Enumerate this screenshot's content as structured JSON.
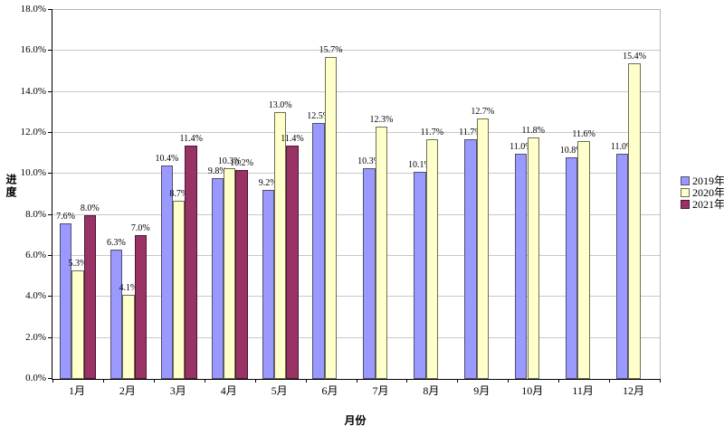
{
  "chart_data": {
    "type": "bar",
    "title": "",
    "xlabel": "月份",
    "ylabel": "进度",
    "categories": [
      "1月",
      "2月",
      "3月",
      "4月",
      "5月",
      "6月",
      "7月",
      "8月",
      "9月",
      "10月",
      "11月",
      "12月"
    ],
    "series": [
      {
        "name": "2019年",
        "color": "#9999FF",
        "border_color": "#50506e",
        "values": [
          7.6,
          6.3,
          10.4,
          9.8,
          9.2,
          12.5,
          10.3,
          10.1,
          11.7,
          11.0,
          10.8,
          11.0
        ],
        "labels": [
          "7.6%",
          "6.3%",
          "10.4%",
          "9.8%",
          "9.2%",
          "12.5%",
          "10.3%",
          "10.1%",
          "11.7%",
          "11.0%",
          "10.8%",
          "11.0%"
        ]
      },
      {
        "name": "2020年",
        "color": "#FFFFCC",
        "border_color": "#6e6e50",
        "values": [
          5.3,
          4.1,
          8.7,
          10.3,
          13.0,
          15.7,
          12.3,
          11.7,
          12.7,
          11.8,
          11.6,
          15.4
        ],
        "labels": [
          "5.3%",
          "4.1%",
          "8.7%",
          "10.3%",
          "13.0%",
          "15.7%",
          "12.3%",
          "11.7%",
          "12.7%",
          "11.8%",
          "11.6%",
          "15.4%"
        ]
      },
      {
        "name": "2021年",
        "color": "#993366",
        "border_color": "#4a1630",
        "values": [
          8.0,
          7.0,
          11.4,
          10.2,
          11.4,
          null,
          null,
          null,
          null,
          null,
          null,
          null
        ],
        "labels": [
          "8.0%",
          "7.0%",
          "11.4%",
          "10.2%",
          "11.4%",
          null,
          null,
          null,
          null,
          null,
          null,
          null
        ]
      }
    ],
    "ylim": [
      0,
      18
    ],
    "ytick_step": 2,
    "ytick_labels": [
      "0.0%",
      "2.0%",
      "4.0%",
      "6.0%",
      "8.0%",
      "10.0%",
      "12.0%",
      "14.0%",
      "16.0%",
      "18.0%"
    ],
    "grid": true,
    "legend_position": "right",
    "data_labels": true,
    "background": "#ffffff",
    "gridline_color": "#c8c8c8"
  }
}
